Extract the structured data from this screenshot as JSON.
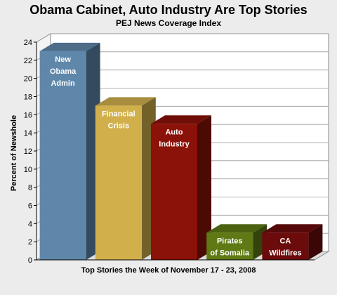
{
  "chart_data": {
    "type": "bar",
    "title": "Obama Cabinet, Auto Industry Are Top Stories",
    "subtitle": "PEJ News Coverage Index",
    "xlabel": "Top Stories the Week of November 17 - 23, 2008",
    "ylabel": "Percent of Newshole",
    "ylim": [
      0,
      24
    ],
    "yticks": [
      "0",
      "2",
      "4",
      "6",
      "8",
      "10",
      "12",
      "14",
      "16",
      "18",
      "20",
      "22",
      "24"
    ],
    "grid": true,
    "categories": [
      [
        "New",
        "Obama",
        "Admin"
      ],
      [
        "Financial",
        "Crisis"
      ],
      [
        "Auto",
        "Industry"
      ],
      [
        "Pirates",
        "of Somalia"
      ],
      [
        "CA",
        "Wildfires"
      ]
    ],
    "values": [
      23,
      17,
      15,
      3,
      3
    ],
    "colors": [
      "#5f87aa",
      "#d1b04c",
      "#8b1208",
      "#5f7a14",
      "#6b0b0b"
    ]
  }
}
